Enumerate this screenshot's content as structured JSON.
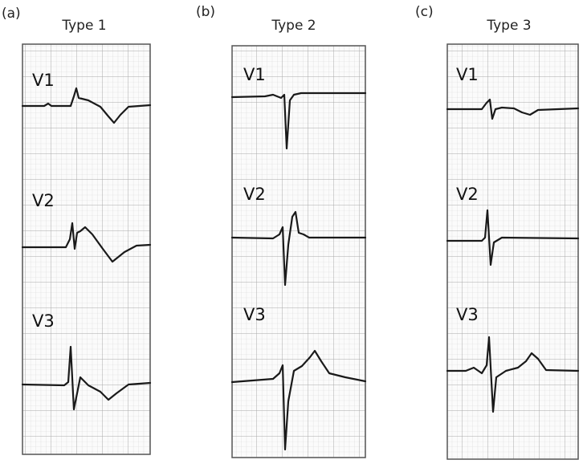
{
  "panels": [
    {
      "label": "(a)",
      "title": "Type 1",
      "leads": [
        "V1",
        "V2",
        "V3"
      ]
    },
    {
      "label": "(b)",
      "title": "Type 2",
      "leads": [
        "V1",
        "V2",
        "V3"
      ]
    },
    {
      "label": "(c)",
      "title": "Type 3",
      "leads": [
        "V1",
        "V2",
        "V3"
      ]
    }
  ]
}
